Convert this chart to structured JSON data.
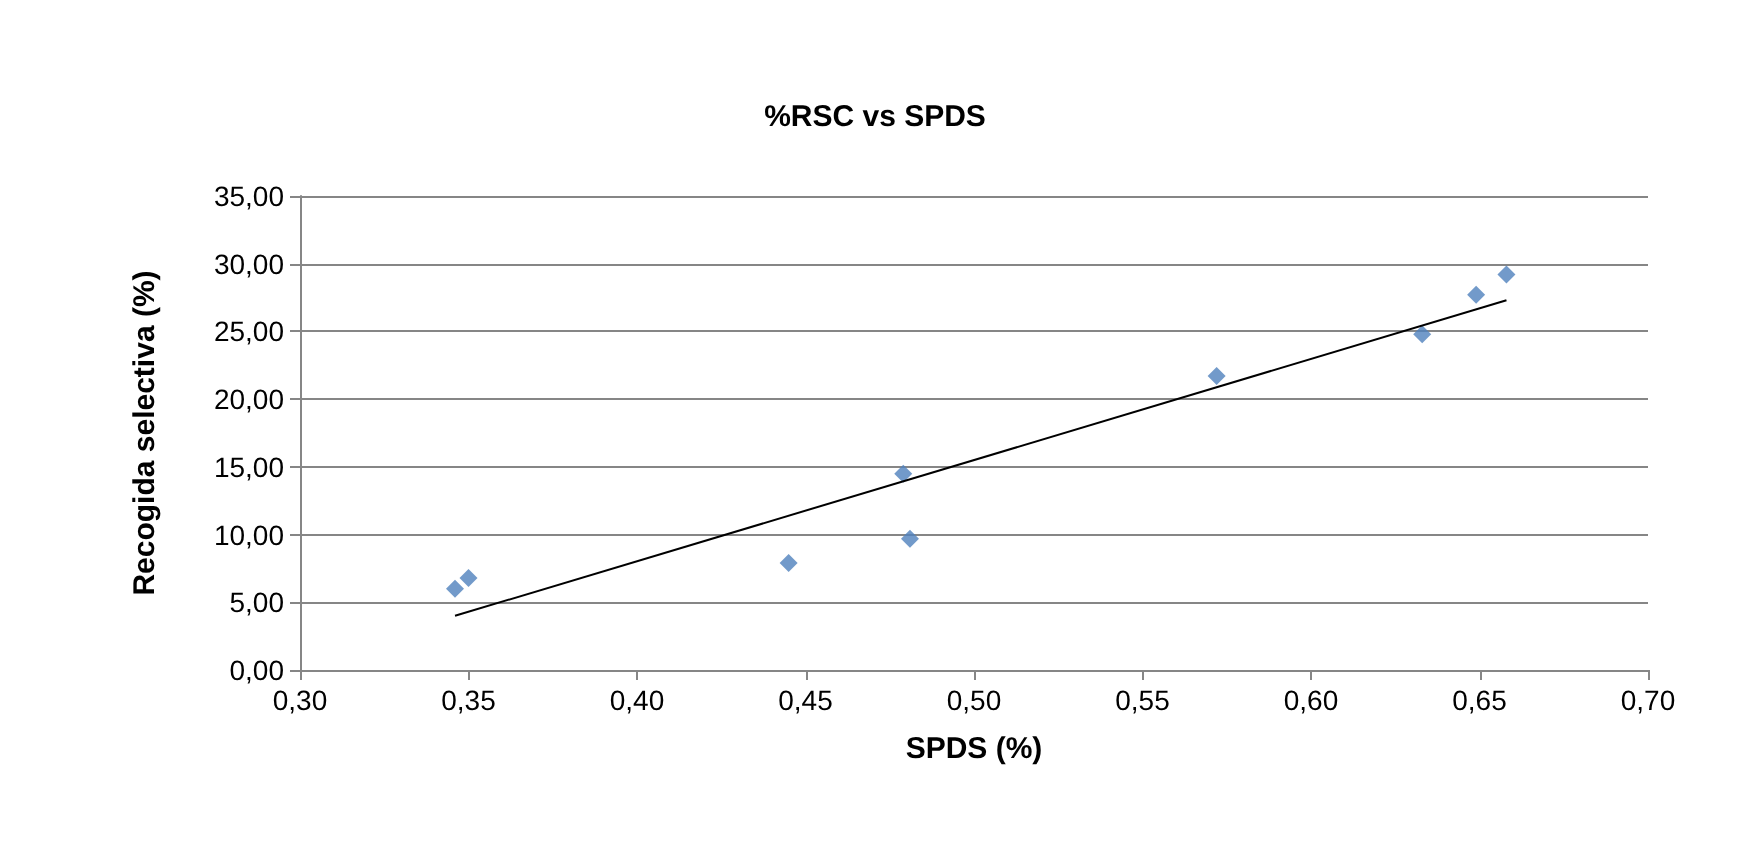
{
  "chart_data": {
    "type": "scatter",
    "title": "%RSC vs SPDS",
    "xlabel": "SPDS (%)",
    "ylabel": "Recogida selectiva (%)",
    "series": [
      {
        "color": "#4f81bd",
        "marker": "diamond",
        "x": [
          0.346,
          0.35,
          0.445,
          0.479,
          0.481,
          0.572,
          0.633,
          0.649,
          0.658
        ],
        "values": [
          6.0,
          6.8,
          7.9,
          14.5,
          9.7,
          21.7,
          24.8,
          27.7,
          29.2
        ]
      },
      {
        "type": "line",
        "color": "#000000",
        "marker": "none",
        "x": [
          0.346,
          0.658
        ],
        "values": [
          4.0,
          27.3
        ]
      }
    ],
    "xlim": [
      0.3,
      0.7
    ],
    "xticks": [
      {
        "value": 0.3,
        "label": "0,30"
      },
      {
        "value": 0.35,
        "label": "0,35"
      },
      {
        "value": 0.4,
        "label": "0,40"
      },
      {
        "value": 0.45,
        "label": "0,45"
      },
      {
        "value": 0.5,
        "label": "0,50"
      },
      {
        "value": 0.55,
        "label": "0,55"
      },
      {
        "value": 0.6,
        "label": "0,60"
      },
      {
        "value": 0.65,
        "label": "0,65"
      },
      {
        "value": 0.7,
        "label": "0,70"
      }
    ],
    "ylim": [
      0,
      35
    ],
    "yticks": [
      {
        "value": 0,
        "label": "0,00"
      },
      {
        "value": 5,
        "label": "5,00"
      },
      {
        "value": 10,
        "label": "10,00"
      },
      {
        "value": 15,
        "label": "15,00"
      },
      {
        "value": 20,
        "label": "20,00"
      },
      {
        "value": 25,
        "label": "25,00"
      },
      {
        "value": 30,
        "label": "30,00"
      },
      {
        "value": 35,
        "label": "35,00"
      }
    ],
    "grid": "y"
  }
}
